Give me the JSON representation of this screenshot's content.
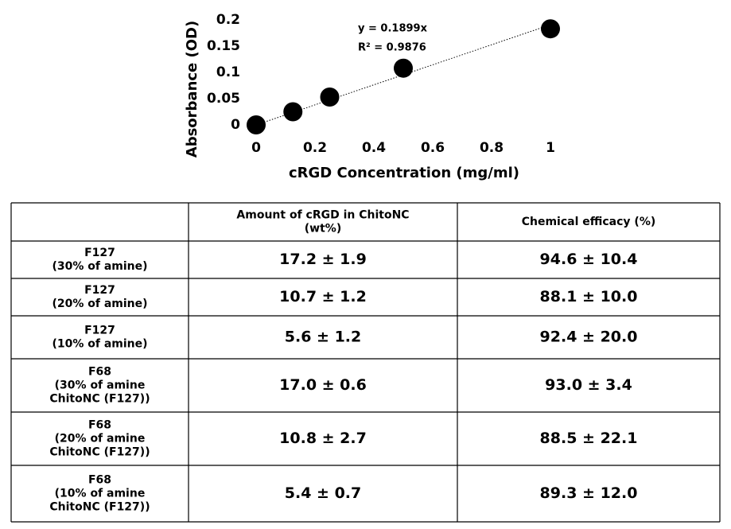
{
  "chart_data": {
    "type": "scatter",
    "x": [
      0,
      0.125,
      0.25,
      0.5,
      1
    ],
    "values": [
      0,
      0.025,
      0.053,
      0.108,
      0.183
    ],
    "color": "#000000",
    "xlabel": "cRGD Concentration (mg/ml)",
    "ylabel": "Absorbance (OD)",
    "annotations": [
      "y = 0.1899x",
      "R² = 0.9876"
    ],
    "xlim": [
      0,
      1
    ],
    "xticks": [
      0,
      0.2,
      0.4,
      0.6,
      0.8,
      1
    ],
    "ylim": [
      0,
      0.2
    ],
    "yticks": [
      0,
      0.05,
      0.1,
      0.15,
      0.2
    ],
    "trendline": true
  },
  "table": {
    "header": [
      [
        "Amount of cRGD in ChitoNC",
        "(wt%)"
      ],
      [
        "Chemical efficacy (%)"
      ]
    ],
    "rows": [
      [
        [
          "F127",
          "(30% of amine)"
        ],
        "17.2 ± 1.9",
        "94.6 ± 10.4"
      ],
      [
        [
          "F127",
          "(20% of amine)"
        ],
        "10.7 ± 1.2",
        "88.1 ± 10.0"
      ],
      [
        [
          "F127",
          "(10% of amine)"
        ],
        "5.6 ± 1.2",
        "92.4 ± 20.0"
      ],
      [
        [
          "F68",
          "(30% of amine",
          "ChitoNC (F127))"
        ],
        "17.0 ± 0.6",
        "93.0 ± 3.4"
      ],
      [
        [
          "F68",
          "(20% of amine",
          "ChitoNC (F127))"
        ],
        "10.8 ± 2.7",
        "88.5 ± 22.1"
      ],
      [
        [
          "F68",
          "(10% of amine",
          "ChitoNC (F127))"
        ],
        "5.4 ± 0.7",
        "89.3 ± 12.0"
      ]
    ]
  }
}
